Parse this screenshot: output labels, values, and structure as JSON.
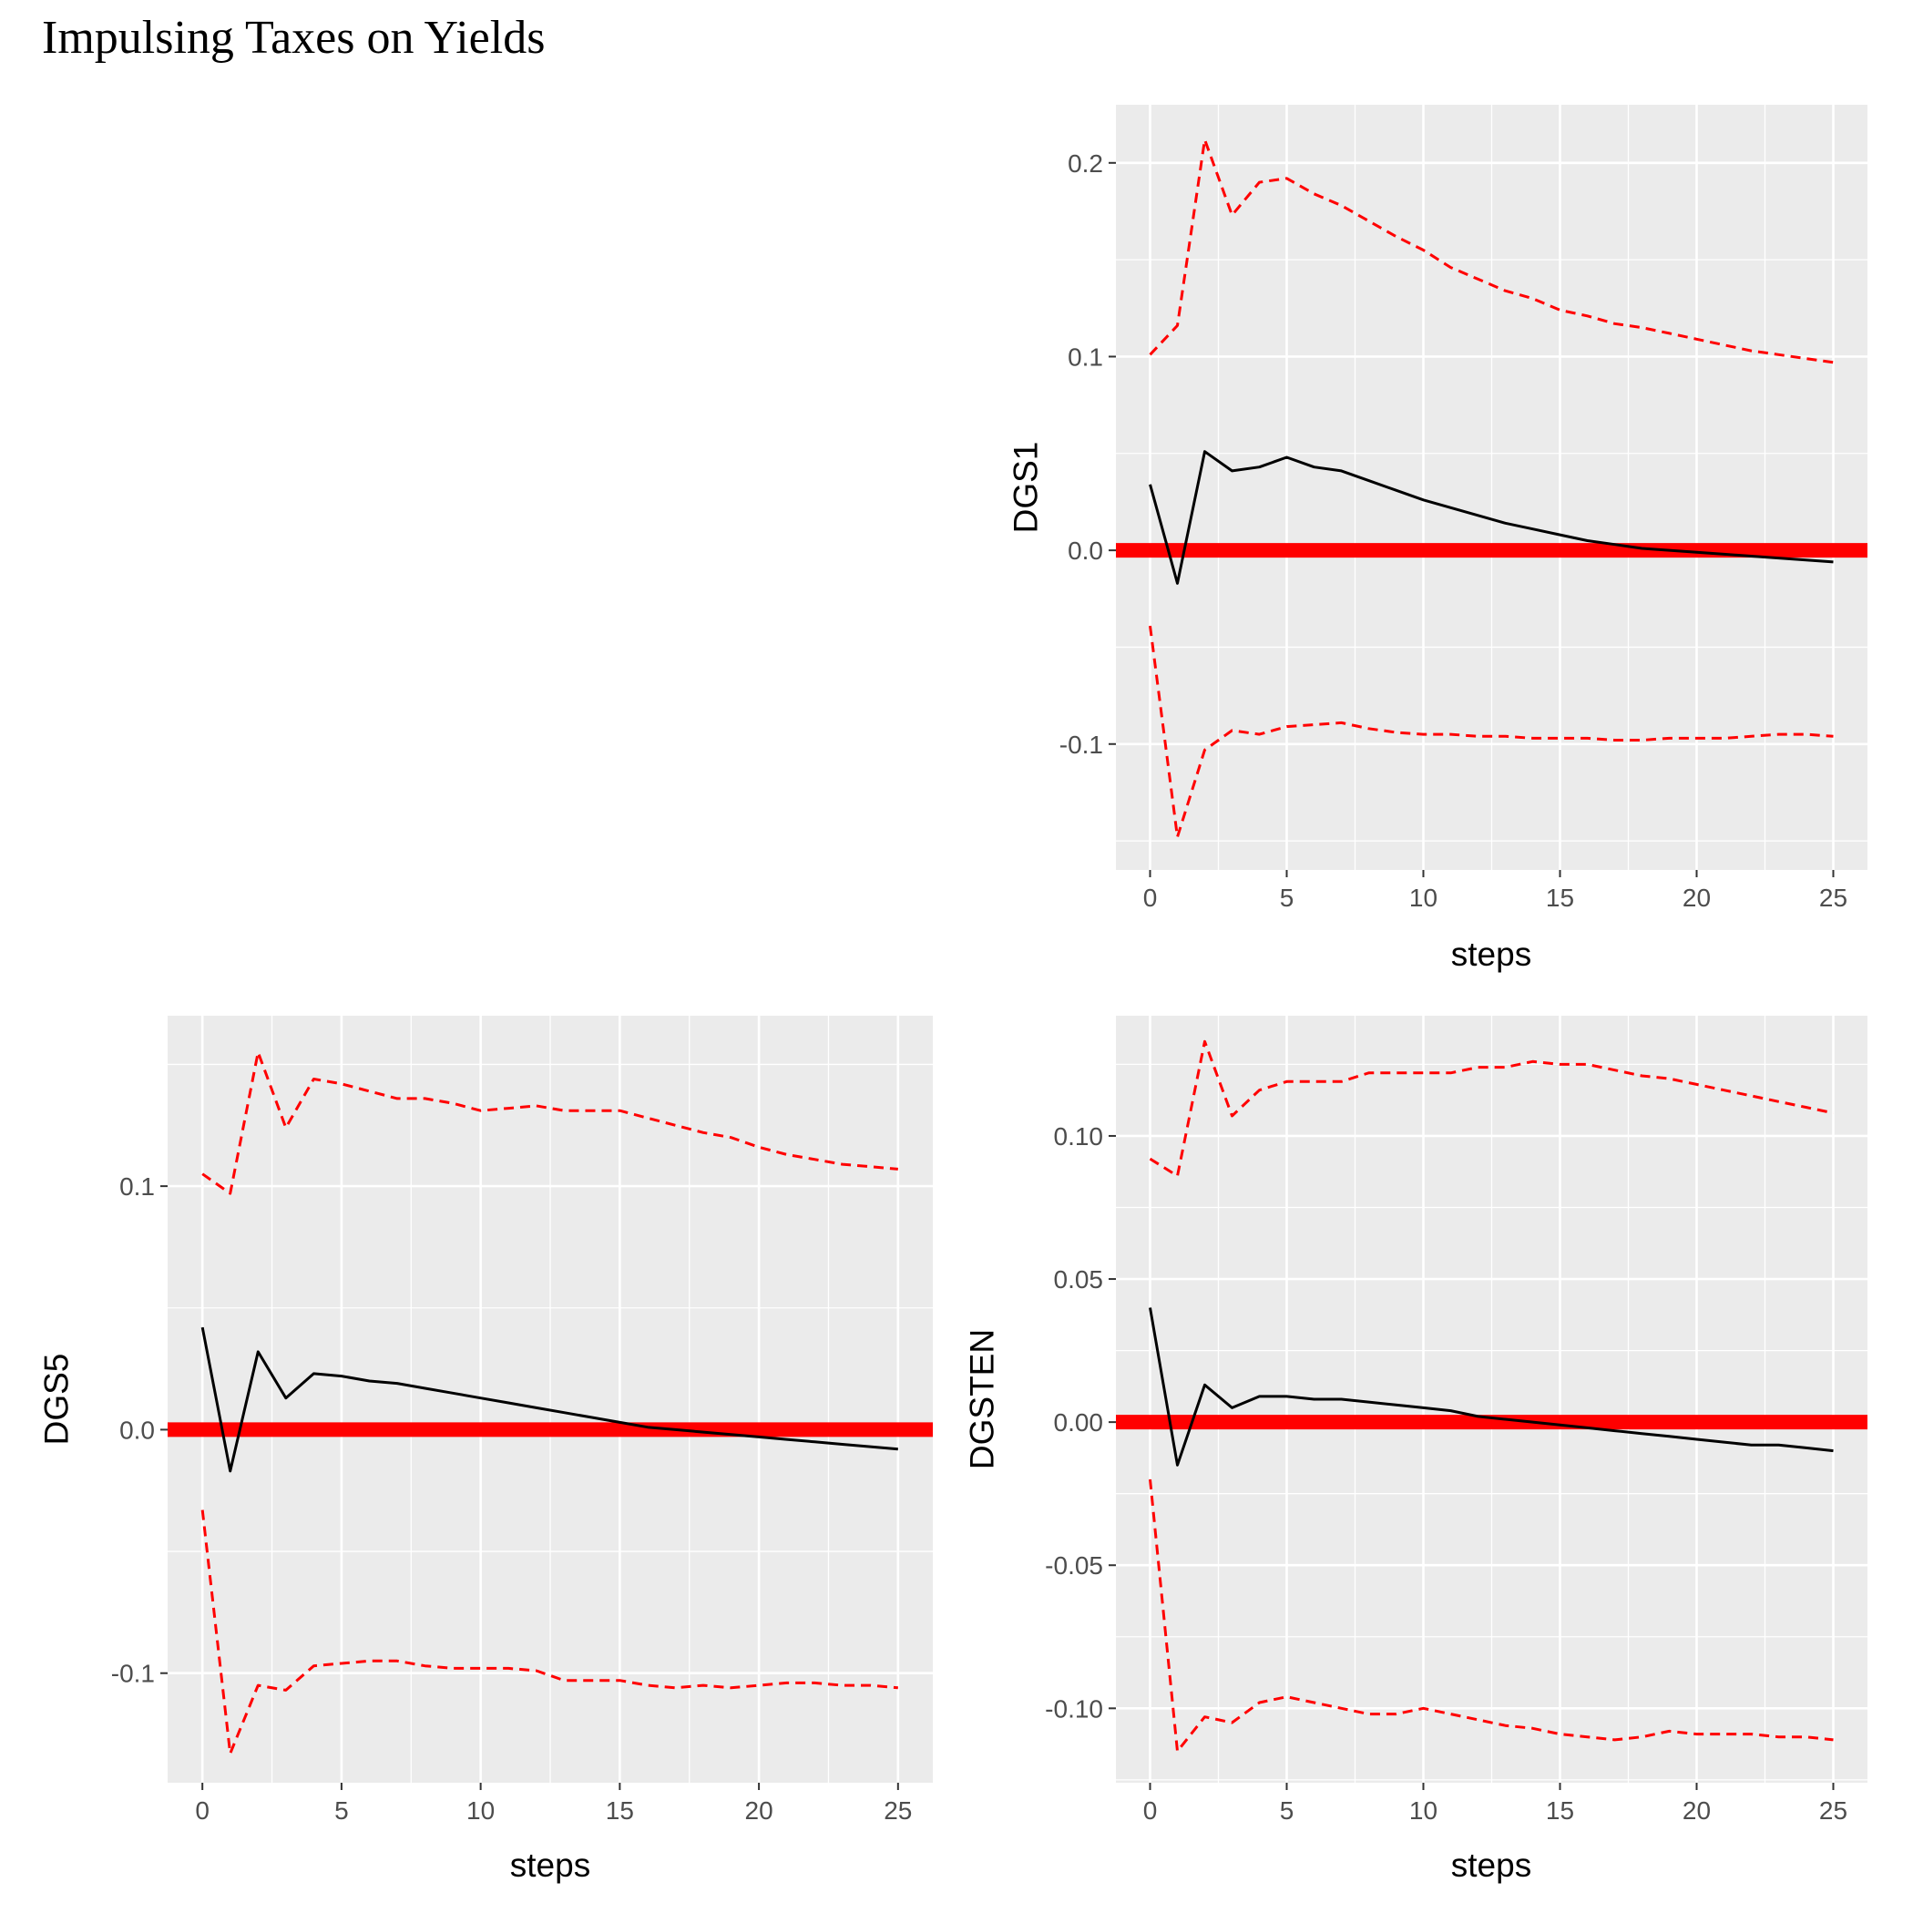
{
  "title": "Impulsing Taxes on Yields",
  "colors": {
    "panel_background": "#ebebeb",
    "grid": "#ffffff",
    "response": "#000000",
    "bands": "#ff0000",
    "zero_line": "#ff0000"
  },
  "chart_data": [
    {
      "type": "line",
      "xlabel": "steps",
      "ylabel": "DGS1",
      "xlim": [
        -1.25,
        26.25
      ],
      "ylim": [
        -0.165,
        0.23
      ],
      "xticks": [
        0,
        5,
        10,
        15,
        20,
        25
      ],
      "yticks": [
        -0.1,
        0.0,
        0.1,
        0.2
      ],
      "ytick_labels": [
        "-0.1",
        "0.0",
        "0.1",
        "0.2"
      ],
      "zero_line": 0,
      "x": [
        0,
        1,
        2,
        3,
        4,
        5,
        6,
        7,
        8,
        9,
        10,
        11,
        12,
        13,
        14,
        15,
        16,
        17,
        18,
        19,
        20,
        21,
        22,
        23,
        24,
        25
      ],
      "series": [
        {
          "role": "response",
          "values": [
            0.034,
            -0.017,
            0.051,
            0.041,
            0.043,
            0.048,
            0.043,
            0.041,
            0.036,
            0.031,
            0.026,
            0.022,
            0.018,
            0.014,
            0.011,
            0.008,
            0.005,
            0.003,
            0.001,
            0.0,
            -0.001,
            -0.002,
            -0.003,
            -0.004,
            -0.005,
            -0.006
          ]
        },
        {
          "role": "upper",
          "values": [
            0.101,
            0.116,
            0.212,
            0.173,
            0.19,
            0.192,
            0.184,
            0.178,
            0.17,
            0.162,
            0.155,
            0.146,
            0.14,
            0.134,
            0.13,
            0.124,
            0.121,
            0.117,
            0.115,
            0.112,
            0.109,
            0.106,
            0.103,
            0.101,
            0.099,
            0.097
          ]
        },
        {
          "role": "lower",
          "values": [
            -0.039,
            -0.148,
            -0.103,
            -0.093,
            -0.095,
            -0.091,
            -0.09,
            -0.089,
            -0.092,
            -0.094,
            -0.095,
            -0.095,
            -0.096,
            -0.096,
            -0.097,
            -0.097,
            -0.097,
            -0.098,
            -0.098,
            -0.097,
            -0.097,
            -0.097,
            -0.096,
            -0.095,
            -0.095,
            -0.096
          ]
        }
      ]
    },
    {
      "type": "line",
      "xlabel": "steps",
      "ylabel": "DGS5",
      "xlim": [
        -1.25,
        26.25
      ],
      "ylim": [
        -0.145,
        0.17
      ],
      "xticks": [
        0,
        5,
        10,
        15,
        20,
        25
      ],
      "yticks": [
        -0.1,
        0.0,
        0.1
      ],
      "ytick_labels": [
        "-0.1",
        "0.0",
        "0.1"
      ],
      "zero_line": 0,
      "x": [
        0,
        1,
        2,
        3,
        4,
        5,
        6,
        7,
        8,
        9,
        10,
        11,
        12,
        13,
        14,
        15,
        16,
        17,
        18,
        19,
        20,
        21,
        22,
        23,
        24,
        25
      ],
      "series": [
        {
          "role": "response",
          "values": [
            0.042,
            -0.017,
            0.032,
            0.013,
            0.023,
            0.022,
            0.02,
            0.019,
            0.017,
            0.015,
            0.013,
            0.011,
            0.009,
            0.007,
            0.005,
            0.003,
            0.001,
            -0.0,
            -0.001,
            -0.002,
            -0.003,
            -0.004,
            -0.005,
            -0.006,
            -0.007,
            -0.008
          ]
        },
        {
          "role": "upper",
          "values": [
            0.105,
            0.097,
            0.155,
            0.124,
            0.144,
            0.142,
            0.139,
            0.136,
            0.136,
            0.134,
            0.131,
            0.132,
            0.133,
            0.131,
            0.131,
            0.131,
            0.128,
            0.125,
            0.122,
            0.12,
            0.116,
            0.113,
            0.111,
            0.109,
            0.108,
            0.107
          ]
        },
        {
          "role": "lower",
          "values": [
            -0.033,
            -0.133,
            -0.105,
            -0.107,
            -0.097,
            -0.096,
            -0.095,
            -0.095,
            -0.097,
            -0.098,
            -0.098,
            -0.098,
            -0.099,
            -0.103,
            -0.103,
            -0.103,
            -0.105,
            -0.106,
            -0.105,
            -0.106,
            -0.105,
            -0.104,
            -0.104,
            -0.105,
            -0.105,
            -0.106
          ]
        }
      ]
    },
    {
      "type": "line",
      "xlabel": "steps",
      "ylabel": "DGSTEN",
      "xlim": [
        -1.25,
        26.25
      ],
      "ylim": [
        -0.126,
        0.142
      ],
      "xticks": [
        0,
        5,
        10,
        15,
        20,
        25
      ],
      "yticks": [
        -0.1,
        -0.05,
        0.0,
        0.05,
        0.1
      ],
      "ytick_labels": [
        "-0.10",
        "-0.05",
        "0.00",
        "0.05",
        "0.10"
      ],
      "zero_line": 0,
      "x": [
        0,
        1,
        2,
        3,
        4,
        5,
        6,
        7,
        8,
        9,
        10,
        11,
        12,
        13,
        14,
        15,
        16,
        17,
        18,
        19,
        20,
        21,
        22,
        23,
        24,
        25
      ],
      "series": [
        {
          "role": "response",
          "values": [
            0.04,
            -0.015,
            0.013,
            0.005,
            0.009,
            0.009,
            0.008,
            0.008,
            0.007,
            0.006,
            0.005,
            0.004,
            0.002,
            0.001,
            0.0,
            -0.001,
            -0.002,
            -0.003,
            -0.004,
            -0.005,
            -0.006,
            -0.007,
            -0.008,
            -0.008,
            -0.009,
            -0.01
          ]
        },
        {
          "role": "upper",
          "values": [
            0.092,
            0.086,
            0.133,
            0.107,
            0.116,
            0.119,
            0.119,
            0.119,
            0.122,
            0.122,
            0.122,
            0.122,
            0.124,
            0.124,
            0.126,
            0.125,
            0.125,
            0.123,
            0.121,
            0.12,
            0.118,
            0.116,
            0.114,
            0.112,
            0.11,
            0.108
          ]
        },
        {
          "role": "lower",
          "values": [
            -0.02,
            -0.115,
            -0.103,
            -0.105,
            -0.098,
            -0.096,
            -0.098,
            -0.1,
            -0.102,
            -0.102,
            -0.1,
            -0.102,
            -0.104,
            -0.106,
            -0.107,
            -0.109,
            -0.11,
            -0.111,
            -0.11,
            -0.108,
            -0.109,
            -0.109,
            -0.109,
            -0.11,
            -0.11,
            -0.111
          ]
        }
      ]
    }
  ]
}
